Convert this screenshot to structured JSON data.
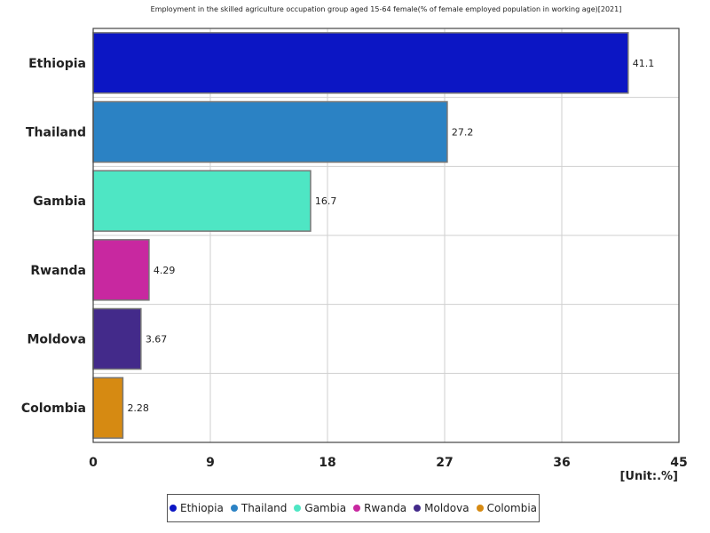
{
  "chart_data": {
    "type": "bar",
    "orientation": "horizontal",
    "title": "Employment in the skilled agriculture occupation group aged 15-64 female(% of female employed population in working age)[2021]",
    "unit": "[Unit:.%]",
    "categories": [
      "Ethiopia",
      "Thailand",
      "Gambia",
      "Rwanda",
      "Moldova",
      "Colombia"
    ],
    "values": [
      41.1,
      27.2,
      16.7,
      4.29,
      3.67,
      2.28
    ],
    "value_labels": [
      "41.1",
      "27.2",
      "16.7",
      "4.29",
      "3.67",
      "2.28"
    ],
    "colors": [
      "#0c16c4",
      "#2b82c4",
      "#4ee6c4",
      "#c828a0",
      "#432a8a",
      "#d68a12"
    ],
    "xlim": [
      0,
      45
    ],
    "xticks": [
      "0",
      "9",
      "18",
      "27",
      "36",
      "45"
    ],
    "grid": true,
    "legend_position": "bottom"
  }
}
